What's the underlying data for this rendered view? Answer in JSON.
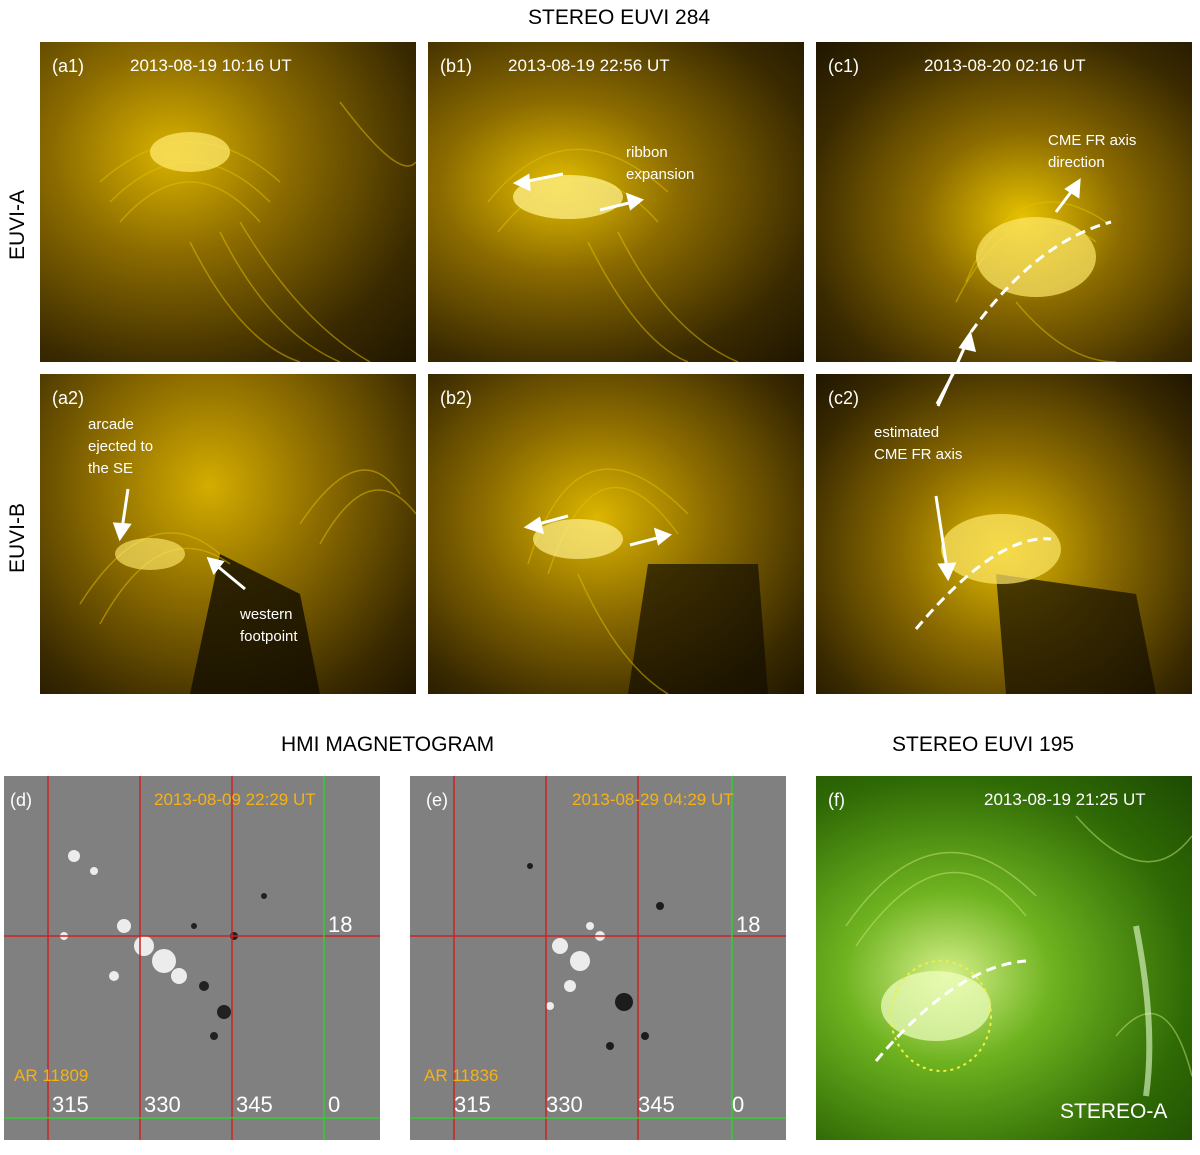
{
  "header_top": "STEREO EUVI 284",
  "header_hmi": "HMI MAGNETOGRAM",
  "header_195": "STEREO EUVI 195",
  "row_labels": {
    "a": "EUVI-A",
    "b": "EUVI-B"
  },
  "panels": {
    "a1": {
      "label": "(a1)",
      "time": "2013-08-19 10:16 UT"
    },
    "b1": {
      "label": "(b1)",
      "time": "2013-08-19 22:56 UT",
      "annotation": "ribbon\nexpansion"
    },
    "c1": {
      "label": "(c1)",
      "time": "2013-08-20 02:16 UT",
      "annotation": "CME FR axis\ndirection"
    },
    "a2": {
      "label": "(a2)",
      "annotation_top": "arcade\nejected to\nthe SE",
      "annotation_bottom": "western\nfootpoint"
    },
    "b2": {
      "label": "(b2)"
    },
    "c2": {
      "label": "(c2)",
      "annotation": "estimated\nCME FR axis"
    },
    "d": {
      "label": "(d)",
      "time": "2013-08-09 22:29 UT",
      "region": "AR 11809",
      "grid_labels": {
        "lat": "18",
        "lon1": "315",
        "lon2": "330",
        "lon3": "345",
        "lon0": "0"
      }
    },
    "e": {
      "label": "(e)",
      "time": "2013-08-29 04:29 UT",
      "region": "AR 11836",
      "grid_labels": {
        "lat": "18",
        "lon1": "315",
        "lon2": "330",
        "lon3": "345",
        "lon0": "0"
      }
    },
    "f": {
      "label": "(f)",
      "time": "2013-08-19 21:25 UT",
      "spacecraft": "STEREO-A"
    }
  },
  "colors": {
    "euvi284": "#c8a400",
    "euvi195": "#4f9a0a",
    "magnetogram": "#808080",
    "grid_red": "#cc2222",
    "grid_green": "#33cc33",
    "time_orange": "#f5b117"
  }
}
